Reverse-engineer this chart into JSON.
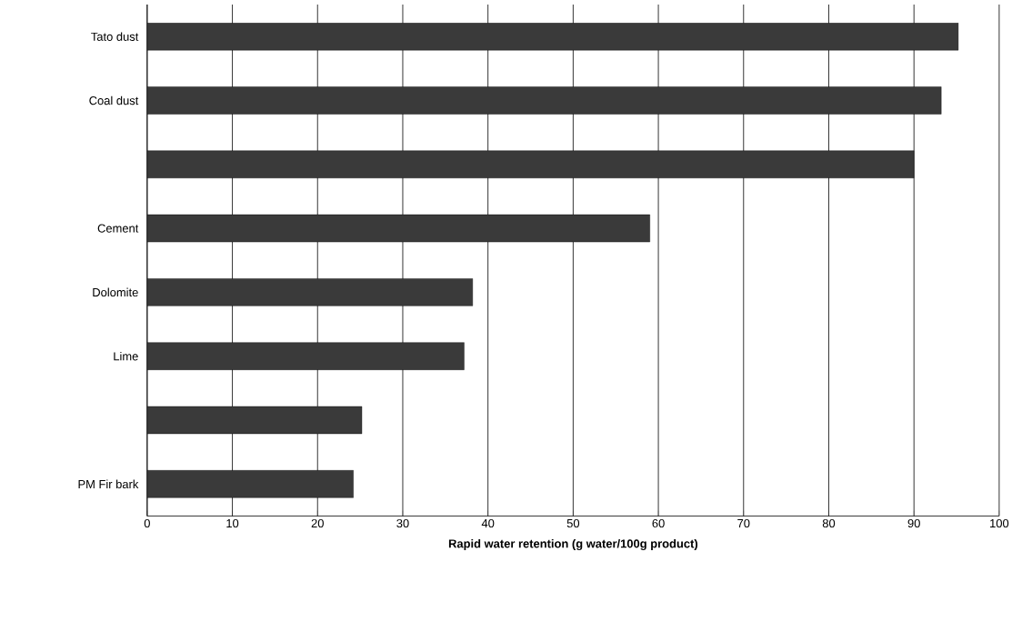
{
  "chart_data": {
    "type": "bar",
    "orientation": "horizontal",
    "categories": [
      "Tato dust",
      "Coal dust",
      null,
      "Cement",
      "Dolomite",
      "Lime",
      null,
      "PM Fir bark"
    ],
    "values": [
      95.2,
      93.2,
      90,
      59,
      38.2,
      37.2,
      25.2,
      24.2
    ],
    "color": "#3a3a3a",
    "xlabel": "Rapid water retention (g water/100g product)",
    "xlim": [
      0,
      100
    ],
    "xticks": [
      0,
      10,
      20,
      30,
      40,
      50,
      60,
      70,
      80,
      90,
      100
    ],
    "grid": "x"
  }
}
